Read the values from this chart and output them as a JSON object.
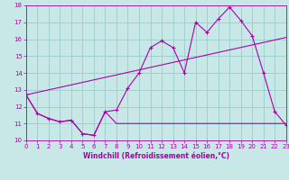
{
  "xlabel": "Windchill (Refroidissement éolien,°C)",
  "bg_color": "#c8e8e8",
  "line_color": "#aa00aa",
  "grid_color": "#99cccc",
  "series1_x": [
    0,
    1,
    2,
    3,
    4,
    5,
    6,
    7,
    8,
    9,
    10,
    11,
    12,
    13,
    14,
    15,
    16,
    17,
    18,
    19,
    20,
    21,
    22,
    23
  ],
  "series1_y": [
    12.7,
    11.6,
    11.3,
    11.1,
    11.2,
    10.4,
    10.3,
    11.7,
    11.0,
    11.0,
    11.0,
    11.0,
    11.0,
    11.0,
    11.0,
    11.0,
    11.0,
    11.0,
    11.0,
    11.0,
    11.0,
    11.0,
    11.0,
    11.0
  ],
  "series2_x": [
    0,
    1,
    2,
    3,
    4,
    5,
    6,
    7,
    8,
    9,
    10,
    11,
    12,
    13,
    14,
    15,
    16,
    17,
    18,
    19,
    20,
    21,
    22,
    23
  ],
  "series2_y": [
    12.7,
    11.6,
    11.3,
    11.1,
    11.2,
    10.4,
    10.3,
    11.7,
    11.8,
    13.1,
    14.0,
    15.5,
    15.9,
    15.5,
    14.0,
    17.0,
    16.4,
    17.2,
    17.9,
    17.1,
    16.2,
    14.0,
    11.7,
    10.9
  ],
  "series3_x": [
    0,
    23
  ],
  "series3_y": [
    12.7,
    16.1
  ],
  "xlim": [
    0,
    23
  ],
  "ylim": [
    10,
    18
  ],
  "xticks": [
    0,
    1,
    2,
    3,
    4,
    5,
    6,
    7,
    8,
    9,
    10,
    11,
    12,
    13,
    14,
    15,
    16,
    17,
    18,
    19,
    20,
    21,
    22,
    23
  ],
  "yticks": [
    10,
    11,
    12,
    13,
    14,
    15,
    16,
    17,
    18
  ],
  "xlabel_fontsize": 5.5,
  "tick_fontsize": 5.0
}
